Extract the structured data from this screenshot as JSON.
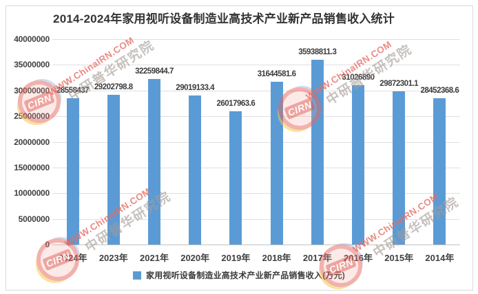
{
  "chart_data": {
    "type": "bar",
    "title": "2014-2024年家用视听设备制造业高技术产业新产品销售收入统计",
    "categories": [
      "2024年",
      "2023年",
      "2021年",
      "2020年",
      "2019年",
      "2018年",
      "2017年",
      "2016年",
      "2015年",
      "2014年"
    ],
    "values": [
      28558437,
      29202798.8,
      32259844.7,
      29019133.4,
      26017963.6,
      31644581.6,
      35938811.3,
      31026890,
      29872301.1,
      28452368.6
    ],
    "value_labels": [
      "28558437",
      "29202798.8",
      "32259844.7",
      "29019133.4",
      "26017963.6",
      "31644581.6",
      "35938811.3",
      "31026890",
      "29872301.1",
      "28452368.6"
    ],
    "ylim": [
      0,
      40000000
    ],
    "yticks": [
      "0",
      "5000000",
      "10000000",
      "15000000",
      "20000000",
      "25000000",
      "30000000",
      "35000000",
      "40000000"
    ],
    "grid": true,
    "legend_position": "bottom",
    "legend_label": "家用视听设备制造业高技术产业新产品销售收入(万元)",
    "bar_color": "#5b9bd5",
    "xlabel": "",
    "ylabel": ""
  },
  "watermark": {
    "logo_text": "CIRN",
    "line1": "WWW.ChinaIRN.COM",
    "line2": "中研普华研究院"
  }
}
